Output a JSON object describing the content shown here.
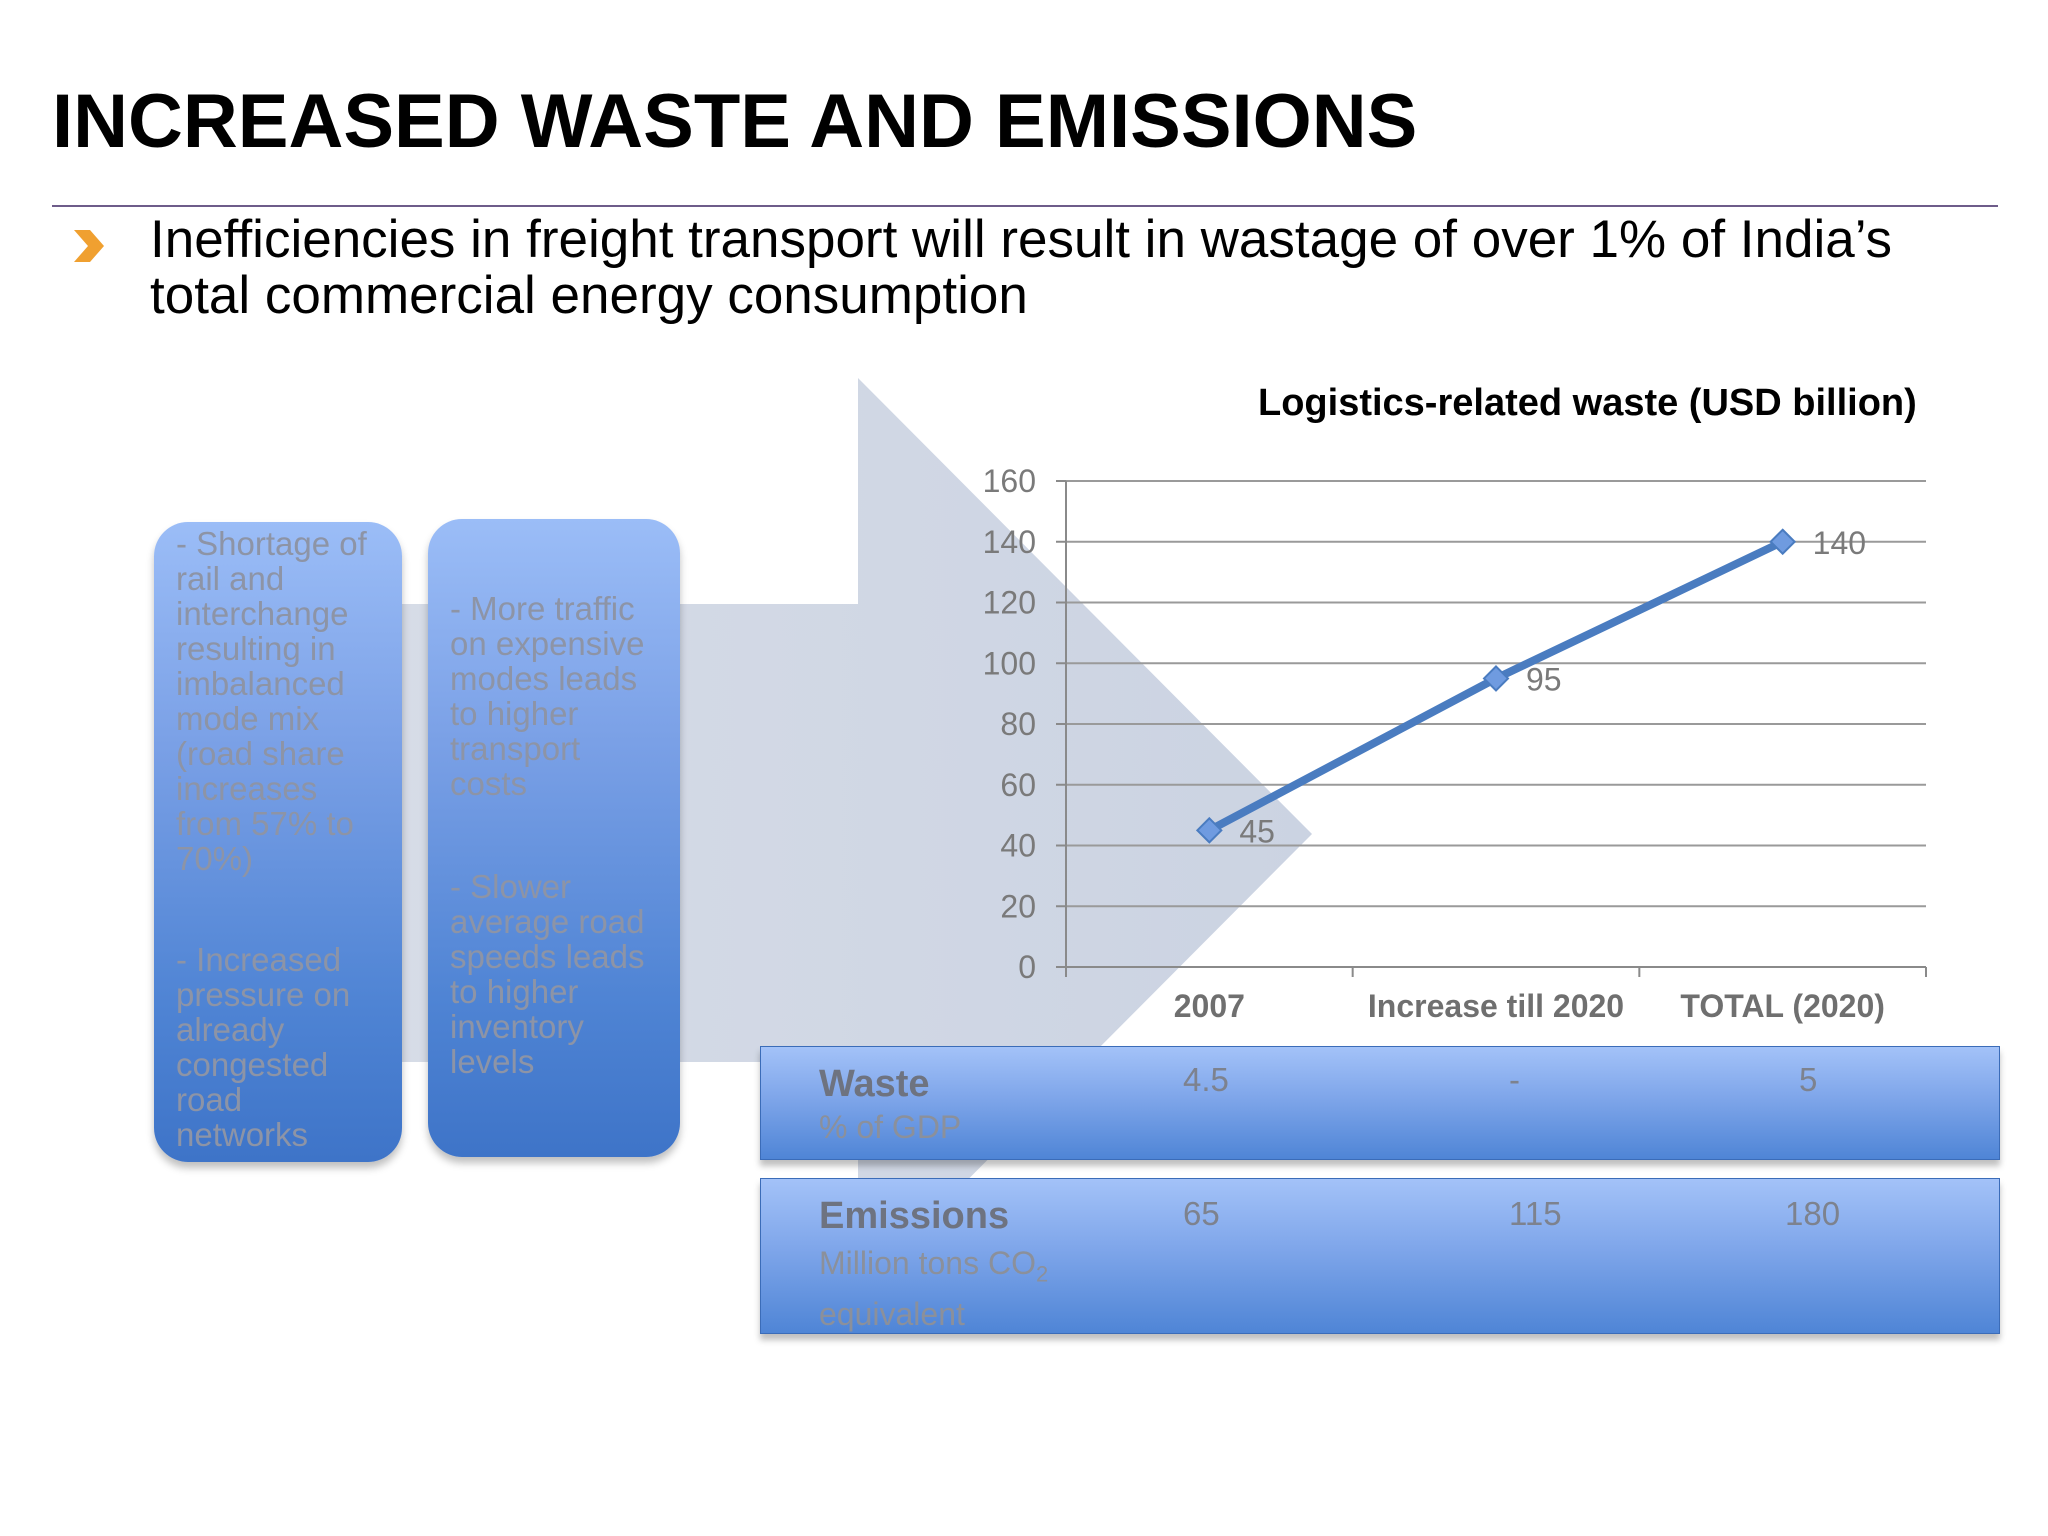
{
  "title": "INCREASED WASTE AND EMISSIONS",
  "bullet": {
    "icon": "chevron-right-icon",
    "icon_color": "#f0a030",
    "text": "Inefficiencies in freight transport will result in wastage of over 1% of India’s total commercial energy consumption"
  },
  "causes": [
    {
      "text": "- Shortage of\nrail and\ninterchange\nresulting in\nimbalanced\nmode mix\n(road share\nincreases\nfrom 57% to\n70%)"
    },
    {
      "text": "- Increased\npressure on\nalready\ncongested\nroad\nnetworks"
    },
    {
      "text": "- More traffic\non expensive\nmodes leads\nto higher\ntransport\ncosts"
    },
    {
      "text": "- Slower\naverage road\nspeeds leads\nto higher\ninventory\nlevels"
    }
  ],
  "chart_data": {
    "type": "line",
    "title": "Logistics-related waste (USD billion)",
    "categories": [
      "2007",
      "Increase till 2020",
      "TOTAL (2020)"
    ],
    "values": [
      45,
      95,
      140
    ],
    "data_labels": [
      "45",
      "95",
      "140"
    ],
    "ylim": [
      0,
      160
    ],
    "y_ticks": [
      0,
      20,
      40,
      60,
      80,
      100,
      120,
      140,
      160
    ],
    "grid": true,
    "line_color": "#4a7cc0",
    "marker": "diamond"
  },
  "table": {
    "rows": [
      {
        "label": "Waste",
        "sublabel": "% of GDP",
        "values": [
          "4.5",
          "-",
          "5"
        ]
      },
      {
        "label": "Emissions",
        "sublabel_main": "Million tons CO",
        "sublabel_sub": "2",
        "sublabel_tail": "equivalent",
        "values": [
          "65",
          "115",
          "180"
        ]
      }
    ]
  }
}
